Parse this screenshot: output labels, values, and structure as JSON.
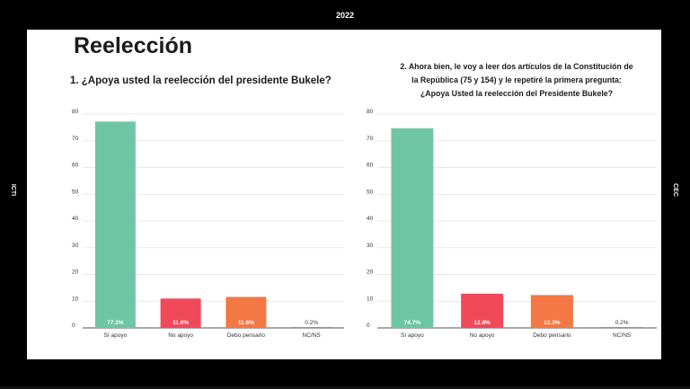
{
  "header": {
    "year": "2022"
  },
  "side_labels": {
    "left": "ICTI",
    "right": "CEC"
  },
  "slide": {
    "title": "Reelección",
    "q1": "1. ¿Apoya usted la reelección del presidente Bukele?",
    "q2_lines": [
      "2. Ahora bien, le voy a leer dos artículos de la Constitución de",
      "la República (75 y 154) y le repetiré la primera pregunta:",
      "¿Apoya Usted la reelección del Presidente Bukele?"
    ]
  },
  "colors": {
    "si": "#6fc6a4",
    "no": "#f04a5a",
    "debo": "#f47843",
    "ncns": "#6a73c4"
  },
  "chart_data": [
    {
      "type": "bar",
      "categories": [
        "Sí apoyo",
        "No apoyo",
        "Debo pensarlo",
        "NC/NS"
      ],
      "values": [
        77.2,
        11.0,
        11.6,
        0.2
      ],
      "data_labels": [
        "77.2%",
        "11.0%",
        "11.6%",
        "0.2%"
      ],
      "ylim": [
        0,
        80
      ],
      "yticks": [
        0,
        10,
        20,
        30,
        40,
        50,
        60,
        70,
        80
      ],
      "grid": true
    },
    {
      "type": "bar",
      "categories": [
        "Sí apoyo",
        "No apoyo",
        "Debo pensarlo",
        "NC/NS"
      ],
      "values": [
        74.7,
        12.8,
        12.3,
        0.2
      ],
      "data_labels": [
        "74.7%",
        "12.8%",
        "12.3%",
        "0.2%"
      ],
      "ylim": [
        0,
        80
      ],
      "yticks": [
        0,
        10,
        20,
        30,
        40,
        50,
        60,
        70,
        80
      ],
      "grid": true
    }
  ]
}
